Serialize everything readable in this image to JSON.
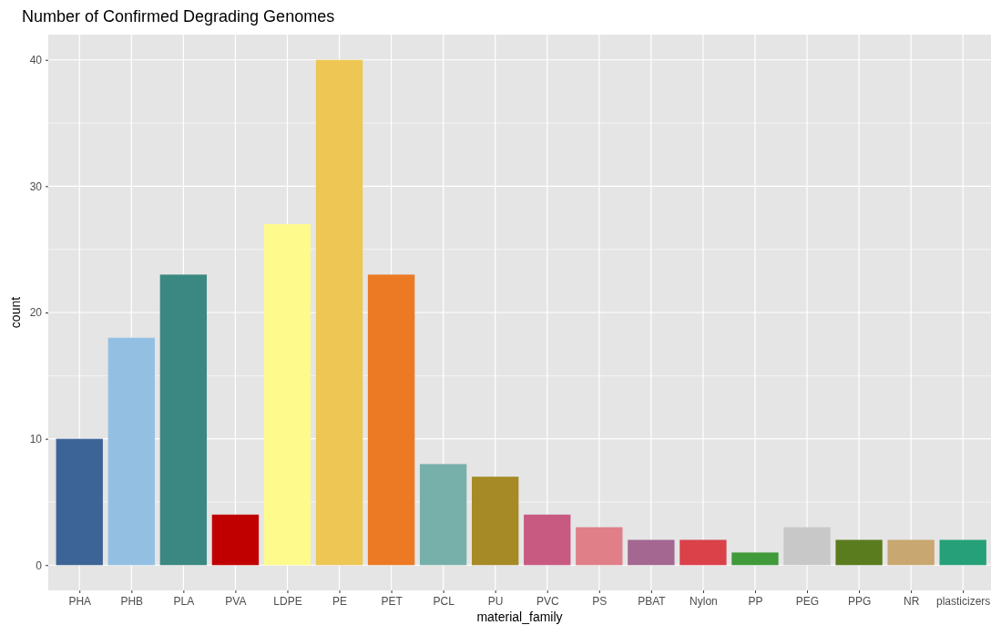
{
  "chart_data": {
    "type": "bar",
    "title": "Number of Confirmed Degrading Genomes",
    "xlabel": "material_family",
    "ylabel": "count",
    "categories": [
      "PHA",
      "PHB",
      "PLA",
      "PVA",
      "LDPE",
      "PE",
      "PET",
      "PCL",
      "PU",
      "PVC",
      "PS",
      "PBAT",
      "Nylon",
      "PP",
      "PEG",
      "PPG",
      "NR",
      "plasticizers"
    ],
    "values": [
      10,
      18,
      23,
      4,
      27,
      40,
      23,
      8,
      7,
      4,
      3,
      2,
      2,
      1,
      3,
      2,
      2,
      2
    ],
    "colors": [
      "#3d6496",
      "#93bfe3",
      "#3b8882",
      "#c00000",
      "#fefa8c",
      "#eec653",
      "#ec7a24",
      "#77b0aa",
      "#a68a25",
      "#c85a82",
      "#e07f88",
      "#a36792",
      "#da4149",
      "#409a3a",
      "#c8c8c8",
      "#5a7c1e",
      "#c9a770",
      "#26a078"
    ],
    "ylim": [
      -2,
      42
    ],
    "yticks": [
      0,
      {
        "value": 5,
        "label": null
      },
      10,
      {
        "value": 15,
        "label": null
      },
      20,
      {
        "value": 25,
        "label": null
      },
      30,
      {
        "value": 35,
        "label": null
      },
      40
    ],
    "grid": true
  }
}
